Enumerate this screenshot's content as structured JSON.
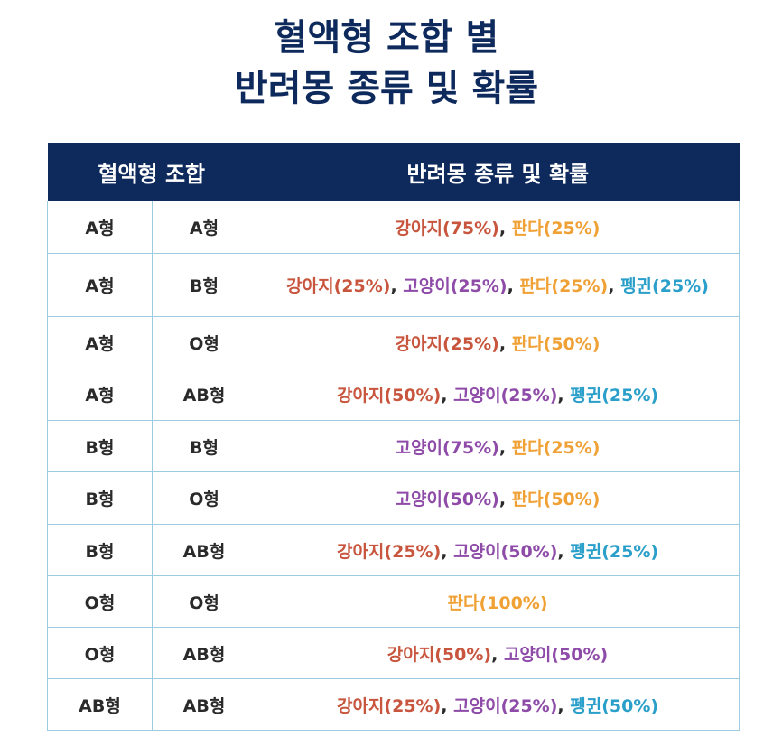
{
  "header": {
    "title_lines": [
      "혈액형 조합 별",
      "반려몽 종류 및 확률"
    ]
  },
  "table": {
    "columns": [
      "혈액형 조합",
      "반려몽 종류 및 확률"
    ],
    "separator": ", ",
    "rows": [
      {
        "parent1": "A형",
        "parent2": "A형",
        "results": [
          {
            "text": "강아지(75%)",
            "color": "#c8553d"
          },
          {
            "text": "판다(25%)",
            "color": "#f0a135"
          }
        ]
      },
      {
        "parent1": "A형",
        "parent2": "B형",
        "results": [
          {
            "text": "강아지(25%)",
            "color": "#c8553d"
          },
          {
            "text": "고양이(25%)",
            "color": "#8e4ca8"
          },
          {
            "text": "판다(25%)",
            "color": "#f0a135"
          },
          {
            "text": "펭귄(25%)",
            "color": "#2a9fc9"
          }
        ]
      },
      {
        "parent1": "A형",
        "parent2": "O형",
        "results": [
          {
            "text": "강아지(25%)",
            "color": "#c8553d"
          },
          {
            "text": "판다(50%)",
            "color": "#f0a135"
          }
        ]
      },
      {
        "parent1": "A형",
        "parent2": "AB형",
        "results": [
          {
            "text": "강아지(50%)",
            "color": "#c8553d"
          },
          {
            "text": "고양이(25%)",
            "color": "#8e4ca8"
          },
          {
            "text": "펭귄(25%)",
            "color": "#2a9fc9"
          }
        ]
      },
      {
        "parent1": "B형",
        "parent2": "B형",
        "results": [
          {
            "text": "고양이(75%)",
            "color": "#8e4ca8"
          },
          {
            "text": "판다(25%)",
            "color": "#f0a135"
          }
        ]
      },
      {
        "parent1": "B형",
        "parent2": "O형",
        "results": [
          {
            "text": "고양이(50%)",
            "color": "#8e4ca8"
          },
          {
            "text": "판다(50%)",
            "color": "#f0a135"
          }
        ]
      },
      {
        "parent1": "B형",
        "parent2": "AB형",
        "results": [
          {
            "text": "강아지(25%)",
            "color": "#c8553d"
          },
          {
            "text": "고양이(50%)",
            "color": "#8e4ca8"
          },
          {
            "text": "펭귄(25%)",
            "color": "#2a9fc9"
          }
        ]
      },
      {
        "parent1": "O형",
        "parent2": "O형",
        "results": [
          {
            "text": "판다(100%)",
            "color": "#f0a135"
          }
        ]
      },
      {
        "parent1": "O형",
        "parent2": "AB형",
        "results": [
          {
            "text": "강아지(50%)",
            "color": "#c8553d"
          },
          {
            "text": "고양이(50%)",
            "color": "#8e4ca8"
          }
        ]
      },
      {
        "parent1": "AB형",
        "parent2": "AB형",
        "results": [
          {
            "text": "강아지(25%)",
            "color": "#c8553d"
          },
          {
            "text": "고양이(25%)",
            "color": "#8e4ca8"
          },
          {
            "text": "펭귄(50%)",
            "color": "#2a9fc9"
          }
        ]
      }
    ]
  }
}
